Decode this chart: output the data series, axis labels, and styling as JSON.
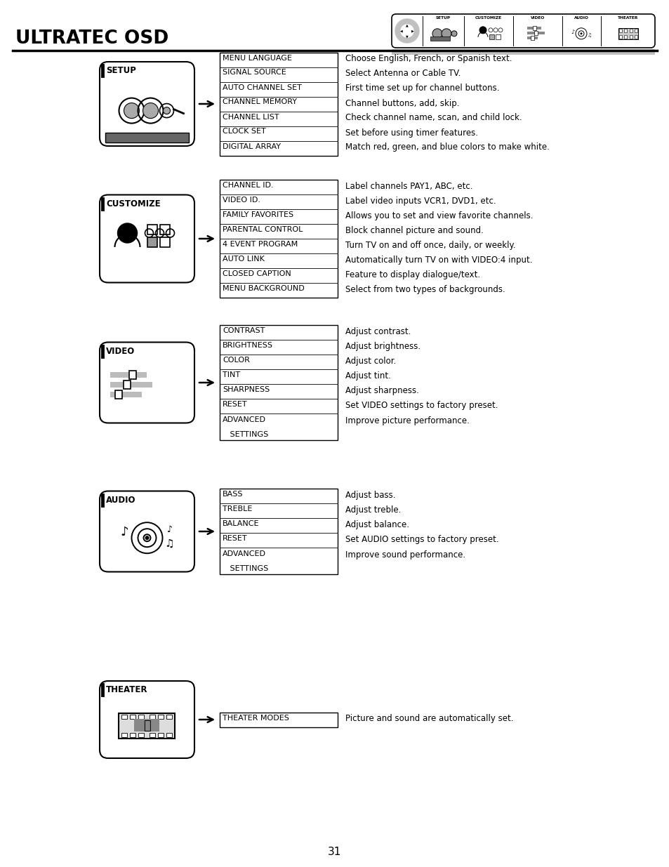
{
  "title": "ULTRATEC OSD",
  "page_number": "31",
  "bg": "#ffffff",
  "sections": [
    {
      "label": "SETUP",
      "items": [
        [
          "MENU LANGUAGE",
          "Choose English, French, or Spanish text."
        ],
        [
          "SIGNAL SOURCE",
          "Select Antenna or Cable TV."
        ],
        [
          "AUTO CHANNEL SET",
          "First time set up for channel buttons."
        ],
        [
          "CHANNEL MEMORY",
          "Channel buttons, add, skip."
        ],
        [
          "CHANNEL LIST",
          "Check channel name, scan, and child lock."
        ],
        [
          "CLOCK SET",
          "Set before using timer features."
        ],
        [
          "DIGITAL ARRAY",
          "Match red, green, and blue colors to make white."
        ]
      ]
    },
    {
      "label": "CUSTOMIZE",
      "items": [
        [
          "CHANNEL ID.",
          "Label channels PAY1, ABC, etc."
        ],
        [
          "VIDEO ID.",
          "Label video inputs VCR1, DVD1, etc."
        ],
        [
          "FAMILY FAVORITES",
          "Allows you to set and view favorite channels."
        ],
        [
          "PARENTAL CONTROL",
          "Block channel picture and sound."
        ],
        [
          "4 EVENT PROGRAM",
          "Turn TV on and off once, daily, or weekly."
        ],
        [
          "AUTO LINK",
          "Automatically turn TV on with VIDEO:4 input."
        ],
        [
          "CLOSED CAPTION",
          "Feature to display dialogue/text."
        ],
        [
          "MENU BACKGROUND",
          "Select from two types of backgrounds."
        ]
      ]
    },
    {
      "label": "VIDEO",
      "items": [
        [
          "CONTRAST",
          "Adjust contrast."
        ],
        [
          "BRIGHTNESS",
          "Adjust brightness."
        ],
        [
          "COLOR",
          "Adjust color."
        ],
        [
          "TINT",
          "Adjust tint."
        ],
        [
          "SHARPNESS",
          "Adjust sharpness."
        ],
        [
          "RESET",
          "Set VIDEO settings to factory preset."
        ],
        [
          "ADVANCED\n   SETTINGS",
          "Improve picture performance."
        ]
      ]
    },
    {
      "label": "AUDIO",
      "items": [
        [
          "BASS",
          "Adjust bass."
        ],
        [
          "TREBLE",
          "Adjust treble."
        ],
        [
          "BALANCE",
          "Adjust balance."
        ],
        [
          "RESET",
          "Set AUDIO settings to factory preset."
        ],
        [
          "ADVANCED\n   SETTINGS",
          "Improve sound performance."
        ]
      ]
    },
    {
      "label": "THEATER",
      "items": [
        [
          "THEATER MODES",
          "Picture and sound are automatically set."
        ]
      ]
    }
  ]
}
